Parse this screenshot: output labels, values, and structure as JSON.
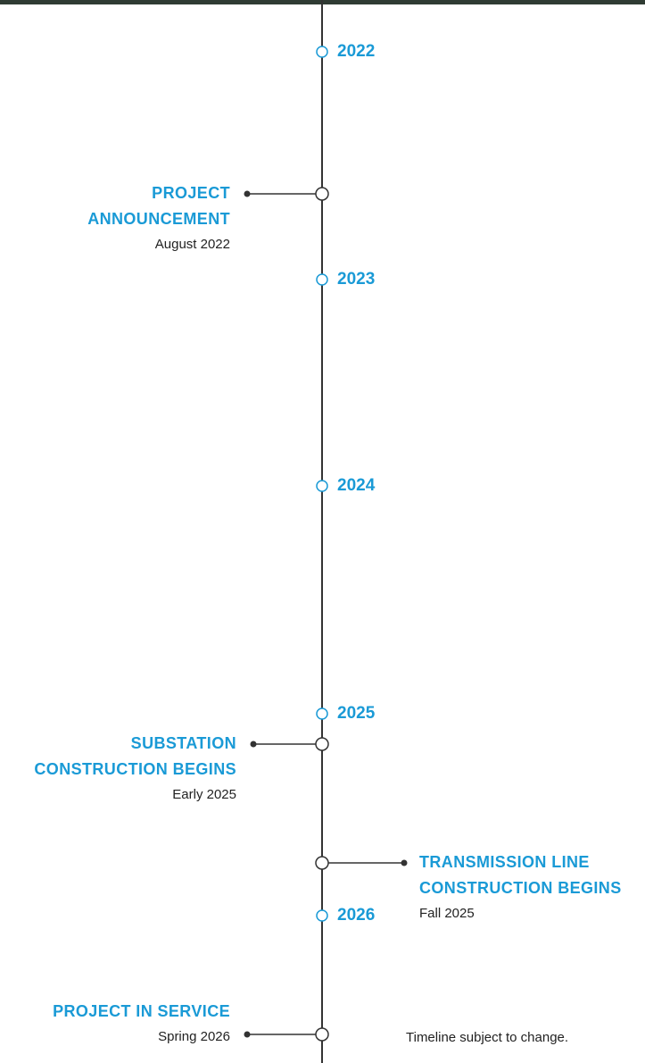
{
  "years": [
    "2022",
    "2023",
    "2024",
    "2025",
    "2026"
  ],
  "events": [
    {
      "title_lines": [
        "PROJECT",
        "ANNOUNCEMENT"
      ],
      "date": "August 2022"
    },
    {
      "title_lines": [
        "SUBSTATION",
        "CONSTRUCTION BEGINS"
      ],
      "date": "Early 2025"
    },
    {
      "title_lines": [
        "TRANSMISSION LINE",
        "CONSTRUCTION BEGINS"
      ],
      "date": "Fall 2025"
    },
    {
      "title_lines": [
        "PROJECT IN SERVICE"
      ],
      "date": "Spring 2026"
    }
  ],
  "footnote": "Timeline subject to change."
}
